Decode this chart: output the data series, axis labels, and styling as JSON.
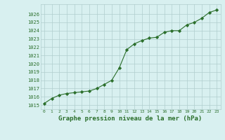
{
  "x": [
    0,
    1,
    2,
    3,
    4,
    5,
    6,
    7,
    8,
    9,
    10,
    11,
    12,
    13,
    14,
    15,
    16,
    17,
    18,
    19,
    20,
    21,
    22,
    23
  ],
  "y": [
    1015.2,
    1015.8,
    1016.2,
    1016.4,
    1016.5,
    1016.6,
    1016.7,
    1017.0,
    1017.5,
    1018.0,
    1019.5,
    1021.7,
    1022.4,
    1022.8,
    1023.1,
    1023.2,
    1023.8,
    1024.0,
    1024.0,
    1024.7,
    1025.0,
    1025.5,
    1026.2,
    1026.5
  ],
  "line_color": "#2a6e2a",
  "marker": "D",
  "marker_size": 2.2,
  "bg_color": "#d8f0f0",
  "grid_color": "#b0cece",
  "title": "Graphe pression niveau de la mer (hPa)",
  "title_fontsize": 6.5,
  "title_color": "#2a6e2a",
  "tick_color": "#2a6e2a",
  "ylim_min": 1014.5,
  "ylim_max": 1027.2,
  "ytick_labels": [
    1015,
    1016,
    1017,
    1018,
    1019,
    1020,
    1021,
    1022,
    1023,
    1024,
    1025,
    1026
  ],
  "xtick_labels": [
    "0",
    "1",
    "2",
    "3",
    "4",
    "5",
    "6",
    "7",
    "8",
    "9",
    "10",
    "11",
    "12",
    "13",
    "14",
    "15",
    "16",
    "17",
    "18",
    "19",
    "20",
    "21",
    "22",
    "23"
  ]
}
